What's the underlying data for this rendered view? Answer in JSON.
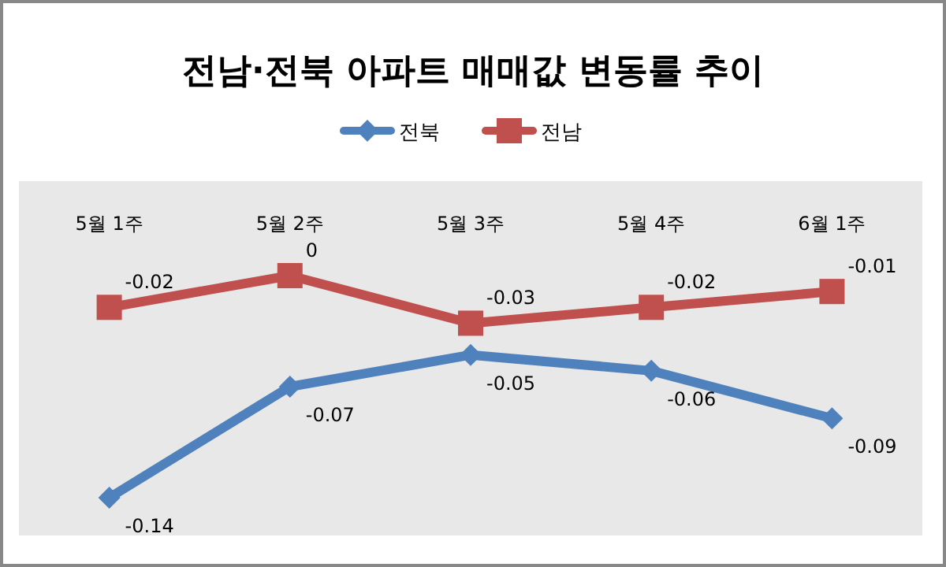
{
  "chart_data": {
    "type": "line",
    "title": "전남·전북 아파트 매매값 변동률 추이",
    "categories": [
      "5월 1주",
      "5월 2주",
      "5월 3주",
      "5월 4주",
      "6월 1주"
    ],
    "data_labels": true,
    "legend": "top",
    "series": [
      {
        "name": "전북",
        "color": "#4f81bd",
        "marker": "diamond",
        "values": [
          -0.14,
          -0.07,
          -0.05,
          -0.06,
          -0.09
        ]
      },
      {
        "name": "전남",
        "color": "#c0504d",
        "marker": "square",
        "values": [
          -0.02,
          0,
          -0.03,
          -0.02,
          -0.01
        ]
      }
    ]
  }
}
